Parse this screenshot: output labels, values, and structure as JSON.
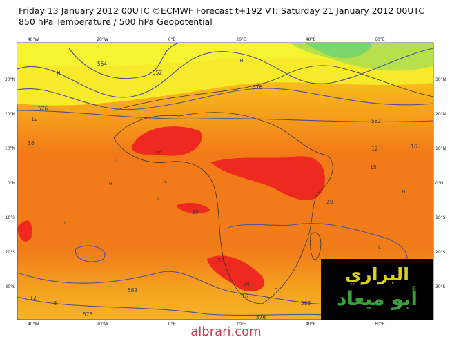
{
  "header": {
    "title": "Friday 13 January 2012 00UTC ©ECMWF Forecast t+192 VT: Saturday 21 January 2012 00UTC",
    "subtitle": "850 hPa Temperature / 500 hPa Geopotential"
  },
  "map": {
    "lon_labels": [
      "40°W",
      "20°W",
      "0°E",
      "20°E",
      "40°E",
      "60°E"
    ],
    "lat_labels": [
      "30°N",
      "20°N",
      "10°N",
      "0°N",
      "10°S",
      "20°S",
      "30°S"
    ],
    "contour_labels": [
      "576",
      "564",
      "552",
      "576",
      "582",
      "12",
      "16",
      "16",
      "20",
      "20",
      "15",
      "20",
      "24",
      "16",
      "12",
      "8",
      "576",
      "582",
      "576",
      "582",
      "20",
      "12"
    ],
    "pressure_marks": [
      "H",
      "H",
      "L",
      "L",
      "H",
      "L",
      "H",
      "L",
      "H",
      "L"
    ]
  },
  "watermark": {
    "line1": "البراري",
    "line2": "أبو ميعاد"
  },
  "footer": "albrari.com"
}
